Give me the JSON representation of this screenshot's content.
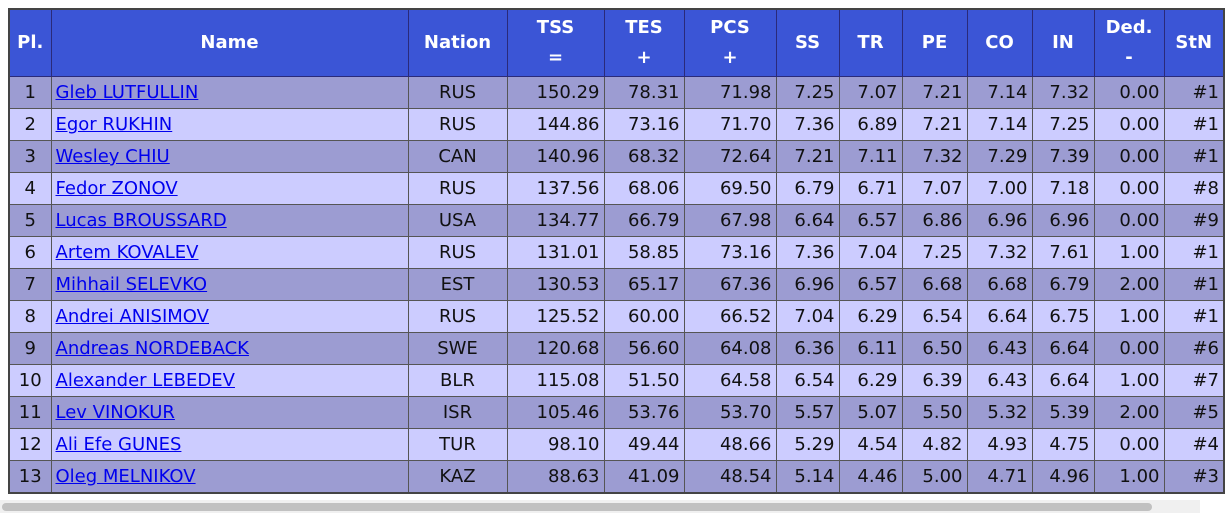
{
  "table": {
    "columns": [
      {
        "label": "Pl."
      },
      {
        "label": "Name"
      },
      {
        "label": "Nation"
      },
      {
        "label": "TSS",
        "sign": "="
      },
      {
        "label": "TES",
        "sign": "+"
      },
      {
        "label": "PCS",
        "sign": "+"
      },
      {
        "label": "SS"
      },
      {
        "label": "TR"
      },
      {
        "label": "PE"
      },
      {
        "label": "CO"
      },
      {
        "label": "IN"
      },
      {
        "label": "Ded.",
        "sign": "-"
      },
      {
        "label": "StN"
      }
    ],
    "rows": [
      [
        "1",
        "Gleb LUTFULLIN",
        "RUS",
        "150.29",
        "78.31",
        "71.98",
        "7.25",
        "7.07",
        "7.21",
        "7.14",
        "7.32",
        "0.00",
        "#1"
      ],
      [
        "2",
        "Egor RUKHIN",
        "RUS",
        "144.86",
        "73.16",
        "71.70",
        "7.36",
        "6.89",
        "7.21",
        "7.14",
        "7.25",
        "0.00",
        "#1"
      ],
      [
        "3",
        "Wesley CHIU",
        "CAN",
        "140.96",
        "68.32",
        "72.64",
        "7.21",
        "7.11",
        "7.32",
        "7.29",
        "7.39",
        "0.00",
        "#1"
      ],
      [
        "4",
        "Fedor ZONOV",
        "RUS",
        "137.56",
        "68.06",
        "69.50",
        "6.79",
        "6.71",
        "7.07",
        "7.00",
        "7.18",
        "0.00",
        "#8"
      ],
      [
        "5",
        "Lucas BROUSSARD",
        "USA",
        "134.77",
        "66.79",
        "67.98",
        "6.64",
        "6.57",
        "6.86",
        "6.96",
        "6.96",
        "0.00",
        "#9"
      ],
      [
        "6",
        "Artem KOVALEV",
        "RUS",
        "131.01",
        "58.85",
        "73.16",
        "7.36",
        "7.04",
        "7.25",
        "7.32",
        "7.61",
        "1.00",
        "#1"
      ],
      [
        "7",
        "Mihhail SELEVKO",
        "EST",
        "130.53",
        "65.17",
        "67.36",
        "6.96",
        "6.57",
        "6.68",
        "6.68",
        "6.79",
        "2.00",
        "#1"
      ],
      [
        "8",
        "Andrei ANISIMOV",
        "RUS",
        "125.52",
        "60.00",
        "66.52",
        "7.04",
        "6.29",
        "6.54",
        "6.64",
        "6.75",
        "1.00",
        "#1"
      ],
      [
        "9",
        "Andreas NORDEBACK",
        "SWE",
        "120.68",
        "56.60",
        "64.08",
        "6.36",
        "6.11",
        "6.50",
        "6.43",
        "6.64",
        "0.00",
        "#6"
      ],
      [
        "10",
        "Alexander LEBEDEV",
        "BLR",
        "115.08",
        "51.50",
        "64.58",
        "6.54",
        "6.29",
        "6.39",
        "6.43",
        "6.64",
        "1.00",
        "#7"
      ],
      [
        "11",
        "Lev VINOKUR",
        "ISR",
        "105.46",
        "53.76",
        "53.70",
        "5.57",
        "5.07",
        "5.50",
        "5.32",
        "5.39",
        "2.00",
        "#5"
      ],
      [
        "12",
        "Ali Efe GUNES",
        "TUR",
        "98.10",
        "49.44",
        "48.66",
        "5.29",
        "4.54",
        "4.82",
        "4.93",
        "4.75",
        "0.00",
        "#4"
      ],
      [
        "13",
        "Oleg MELNIKOV",
        "KAZ",
        "88.63",
        "41.09",
        "48.54",
        "5.14",
        "4.46",
        "5.00",
        "4.71",
        "4.96",
        "1.00",
        "#3"
      ]
    ]
  }
}
